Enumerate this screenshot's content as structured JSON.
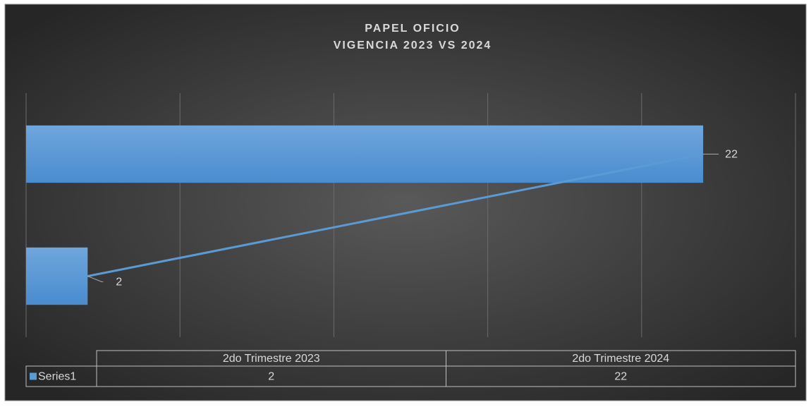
{
  "chart_data": {
    "type": "hbar",
    "title": "PAPEL OFICIO",
    "subtitle": "VIGENCIA 2023 VS 2024",
    "categories": [
      "2do Trimestre 2023",
      "2do Trimestre 2024"
    ],
    "series": [
      {
        "name": "Series1",
        "color": "#5b9bd5",
        "values": [
          2,
          22
        ]
      }
    ],
    "xlim": [
      0,
      25
    ],
    "xticks": [
      0,
      5,
      10,
      15,
      20,
      25
    ],
    "grid": true
  }
}
